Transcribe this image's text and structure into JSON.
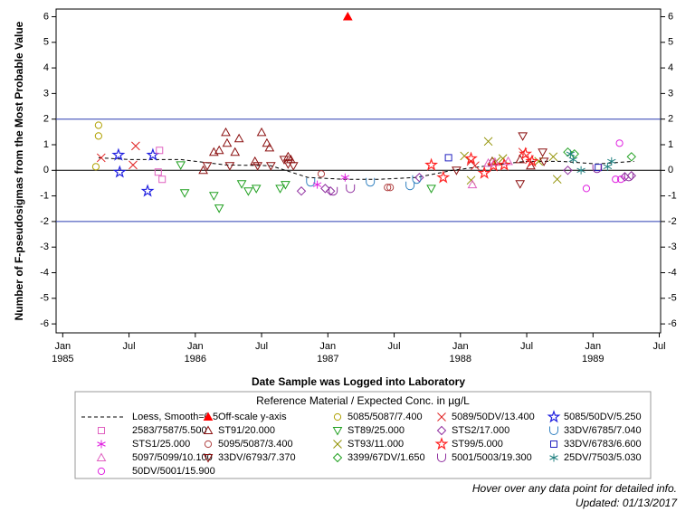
{
  "chart_data": {
    "type": "scatter",
    "y_label": "Number of F-pseudosigmas from the Most Probable Value",
    "x_label": "Date Sample was Logged into Laboratory",
    "legend_title": "Reference Material / Expected Conc. in µg/L",
    "xlim": [
      1984.95,
      1989.51
    ],
    "ylim": [
      -6.35,
      6.3
    ],
    "xticks": [
      {
        "value": 1985,
        "label": "Jan"
      },
      {
        "value": 1985.5,
        "label": "Jul"
      },
      {
        "value": 1986,
        "label": "Jan"
      },
      {
        "value": 1986.5,
        "label": "Jul"
      },
      {
        "value": 1987,
        "label": "Jan"
      },
      {
        "value": 1987.5,
        "label": "Jul"
      },
      {
        "value": 1988,
        "label": "Jan"
      },
      {
        "value": 1988.5,
        "label": "Jul"
      },
      {
        "value": 1989,
        "label": "Jan"
      },
      {
        "value": 1989.5,
        "label": "Jul"
      }
    ],
    "x_year_labels": [
      1985,
      1986,
      1987,
      1988,
      1989
    ],
    "yticks": [
      -6,
      -5,
      -4,
      -3,
      -2,
      -1,
      0,
      1,
      2,
      3,
      4,
      5,
      6
    ],
    "reference_lines": [
      {
        "value": 2,
        "color": "#2a3cb0"
      },
      {
        "value": 0,
        "color": "#000000"
      },
      {
        "value": -2,
        "color": "#2a3cb0"
      }
    ],
    "series": [
      {
        "name": "Loess, Smooth=0.5",
        "color": "#000000",
        "marker": "dashed-line",
        "x": [
          1985.27,
          1985.51,
          1985.89,
          1986.23,
          1986.57,
          1986.85,
          1987.12,
          1987.39,
          1987.67,
          1987.94,
          1988.21,
          1988.49,
          1988.76,
          1989.03,
          1989.31
        ],
        "y": [
          0.49,
          0.42,
          0.42,
          0.21,
          0.18,
          -0.28,
          -0.35,
          -0.35,
          -0.28,
          0,
          0.18,
          0.35,
          0.35,
          0.25,
          0.35
        ]
      },
      {
        "name": "Off-scale y-axis",
        "color": "#ff0000",
        "marker": "filled-triangle",
        "x": [
          1987.15
        ],
        "y": [
          6
        ]
      },
      {
        "name": "5085/5087/7.400",
        "color": "#b0a000",
        "marker": "circle",
        "x": [
          1985.27,
          1985.27,
          1985.25
        ],
        "y": [
          1.76,
          1.34,
          0.14
        ]
      },
      {
        "name": "5089/50DV/13.400",
        "color": "#e02020",
        "marker": "x",
        "x": [
          1985.29,
          1985.55,
          1985.53,
          1988.08,
          1988.11,
          1988.47,
          1988.52
        ],
        "y": [
          0.49,
          0.95,
          0.21,
          0.35,
          0.18,
          0.71,
          0.42
        ]
      },
      {
        "name": "5085/50DV/5.250",
        "color": "#2020e0",
        "marker": "star",
        "x": [
          1985.42,
          1985.43,
          1985.64,
          1985.68
        ],
        "y": [
          0.6,
          -0.07,
          -0.81,
          0.6
        ]
      },
      {
        "name": "2583/7587/5.500",
        "color": "#e060c0",
        "marker": "square",
        "x": [
          1985.73,
          1985.75,
          1985.72
        ],
        "y": [
          0.78,
          -0.35,
          -0.07
        ]
      },
      {
        "name": "ST91/20.000",
        "color": "#8b1010",
        "marker": "triangle",
        "x": [
          1986.06,
          1986.14,
          1986.18,
          1986.23,
          1986.24,
          1986.3,
          1986.33,
          1986.45,
          1986.5,
          1986.54,
          1986.56,
          1986.7,
          1986.72,
          1988.24,
          1988.45,
          1988.53
        ],
        "y": [
          0,
          0.71,
          0.78,
          1.48,
          1.06,
          0.71,
          1.24,
          0.35,
          1.48,
          1.06,
          0.88,
          0.53,
          0.42,
          0.35,
          0.42,
          0.18
        ]
      },
      {
        "name": "ST89/25.000",
        "color": "#20a020",
        "marker": "triangle-down",
        "x": [
          1985.89,
          1985.92,
          1986.14,
          1986.18,
          1986.35,
          1986.4,
          1986.46,
          1986.64,
          1986.68,
          1987.78
        ],
        "y": [
          0.21,
          -0.88,
          -0.99,
          -1.48,
          -0.53,
          -0.81,
          -0.71,
          -0.71,
          -0.56,
          -0.71
        ]
      },
      {
        "name": "STS2/17.000",
        "color": "#9030a0",
        "marker": "diamond",
        "x": [
          1986.8,
          1986.98,
          1987.02,
          1987.69,
          1988.81,
          1989.24,
          1989.29
        ],
        "y": [
          -0.81,
          -0.71,
          -0.81,
          -0.28,
          0,
          -0.25,
          -0.21
        ]
      },
      {
        "name": "33DV/6785/7.040",
        "color": "#3080c0",
        "marker": "cup",
        "x": [
          1986.87,
          1987.32,
          1987.62,
          1987.67
        ],
        "y": [
          -0.46,
          -0.46,
          -0.6,
          -0.35
        ]
      },
      {
        "name": "STS1/25.000",
        "color": "#e020e0",
        "marker": "asterisk",
        "x": [
          1986.92,
          1987.13
        ],
        "y": [
          -0.56,
          -0.28
        ]
      },
      {
        "name": "5095/5087/3.400",
        "color": "#b04040",
        "marker": "circle",
        "x": [
          1986.95,
          1987.45,
          1987.47
        ],
        "y": [
          -0.14,
          -0.67,
          -0.67
        ]
      },
      {
        "name": "ST93/11.000",
        "color": "#909000",
        "marker": "x",
        "x": [
          1988.03,
          1988.08,
          1988.21,
          1988.27,
          1988.32,
          1988.59,
          1988.7,
          1988.73
        ],
        "y": [
          0.56,
          -0.39,
          1.13,
          0.35,
          0.46,
          0.35,
          0.53,
          -0.35
        ]
      },
      {
        "name": "ST99/5.000",
        "color": "#ff2020",
        "marker": "star",
        "x": [
          1987.78,
          1987.87,
          1988.08,
          1988.18,
          1988.33,
          1988.49,
          1988.54,
          1988.25
        ],
        "y": [
          0.21,
          -0.28,
          0.46,
          -0.11,
          0.21,
          0.64,
          0.35,
          0.18
        ]
      },
      {
        "name": "33DV/6783/6.600",
        "color": "#2020c0",
        "marker": "square",
        "x": [
          1987.91,
          1989.04
        ],
        "y": [
          0.49,
          0.11
        ]
      },
      {
        "name": "5097/5099/10.100",
        "color": "#e060c0",
        "marker": "triangle",
        "x": [
          1988.09,
          1988.21,
          1988.26,
          1988.36
        ],
        "y": [
          -0.56,
          0.28,
          0.32,
          0.35
        ]
      },
      {
        "name": "33DV/6793/7.370",
        "color": "#8b1010",
        "marker": "triangle-down",
        "x": [
          1986.09,
          1986.26,
          1986.47,
          1986.57,
          1986.67,
          1986.7,
          1986.74,
          1987.97,
          1988.47,
          1988.45,
          1988.62,
          1988.63
        ],
        "y": [
          0.18,
          0.18,
          0.18,
          0.18,
          0.42,
          0.25,
          0.18,
          0,
          1.34,
          -0.53,
          0.71,
          0.35
        ]
      },
      {
        "name": "3399/67DV/1.650",
        "color": "#20a020",
        "marker": "diamond",
        "x": [
          1988.81,
          1988.86,
          1989.29
        ],
        "y": [
          0.71,
          0.64,
          0.53
        ]
      },
      {
        "name": "5001/5003/19.300",
        "color": "#9030a0",
        "marker": "cup",
        "x": [
          1987.04,
          1987.17,
          1989.03,
          1989.27
        ],
        "y": [
          -0.81,
          -0.71,
          0.07,
          -0.25
        ]
      },
      {
        "name": "25DV/7503/5.030",
        "color": "#208080",
        "marker": "asterisk",
        "x": [
          1988.83,
          1988.85,
          1988.91,
          1989.11,
          1989.14
        ],
        "y": [
          0.64,
          0.42,
          0,
          0.14,
          0.35
        ]
      },
      {
        "name": "50DV/5001/15.900",
        "color": "#e020e0",
        "marker": "circle",
        "x": [
          1988.95,
          1989.2,
          1989.17,
          1989.21
        ],
        "y": [
          -0.71,
          1.06,
          -0.35,
          -0.35
        ]
      }
    ],
    "notes": [
      "Hover over any data point for detailed info.",
      "Updated: 01/13/2017"
    ]
  }
}
